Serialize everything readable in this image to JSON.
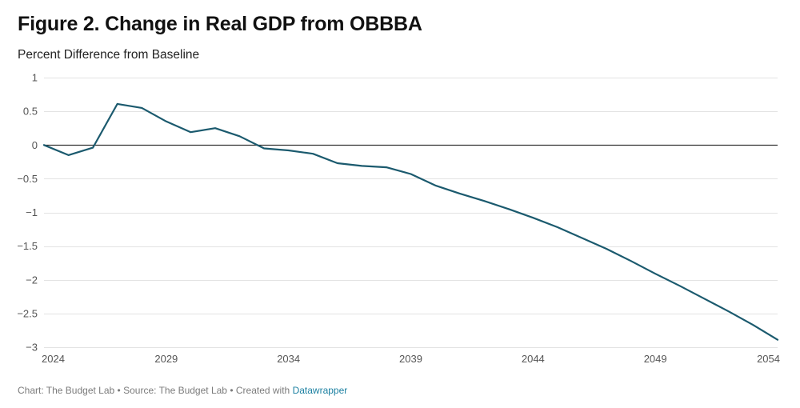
{
  "chart_data": {
    "type": "line",
    "title": "Figure 2. Change in Real GDP from OBBBA",
    "subtitle": "Percent Difference from Baseline",
    "xlabel": "",
    "ylabel": "Percent Difference from Baseline",
    "xlim": [
      2024,
      2054
    ],
    "ylim": [
      -3,
      1
    ],
    "x_ticks": [
      2024,
      2029,
      2034,
      2039,
      2044,
      2049,
      2054
    ],
    "x_tick_labels": [
      "2024",
      "2029",
      "2034",
      "2039",
      "2044",
      "2049",
      "2054"
    ],
    "y_ticks": [
      1,
      0.5,
      0,
      -0.5,
      -1,
      -1.5,
      -2,
      -2.5,
      -3
    ],
    "y_tick_labels": [
      "1",
      "0.5",
      "0",
      "−0.5",
      "−1",
      "−1.5",
      "−2",
      "−2.5",
      "−3"
    ],
    "grid": true,
    "zero_line": true,
    "series": [
      {
        "name": "Change in Real GDP",
        "color": "#1b5a6e",
        "x": [
          2024,
          2025,
          2026,
          2027,
          2028,
          2029,
          2030,
          2031,
          2032,
          2033,
          2034,
          2035,
          2036,
          2037,
          2038,
          2039,
          2040,
          2041,
          2042,
          2043,
          2044,
          2045,
          2046,
          2047,
          2048,
          2049,
          2050,
          2051,
          2052,
          2053,
          2054
        ],
        "values": [
          0,
          -0.15,
          -0.04,
          0.61,
          0.55,
          0.35,
          0.19,
          0.25,
          0.13,
          -0.05,
          -0.08,
          -0.13,
          -0.27,
          -0.31,
          -0.33,
          -0.43,
          -0.6,
          -0.72,
          -0.83,
          -0.95,
          -1.08,
          -1.22,
          -1.38,
          -1.54,
          -1.72,
          -1.91,
          -2.09,
          -2.28,
          -2.47,
          -2.67,
          -2.89
        ]
      }
    ]
  },
  "footer": {
    "chart_credit": "Chart: The Budget Lab",
    "separator": "•",
    "source": "Source: The Budget Lab",
    "created_with": "Created with",
    "tool_link": "Datawrapper"
  },
  "colors": {
    "line": "#1b5a6e",
    "grid": "#e3e3e3",
    "zero_line": "#333333",
    "link": "#1d81a2"
  }
}
